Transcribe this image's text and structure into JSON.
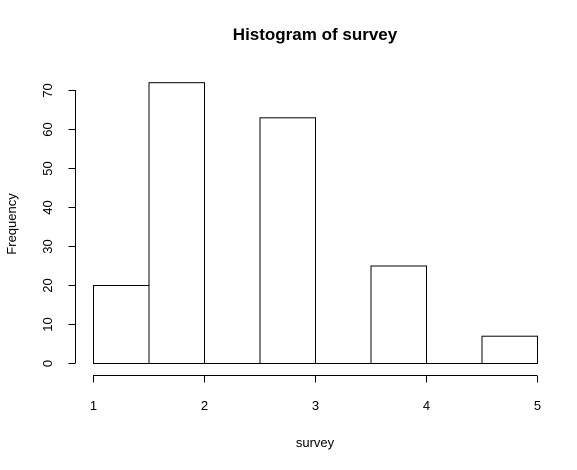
{
  "chart_data": {
    "type": "bar",
    "title": "Histogram of survey",
    "xlabel": "survey",
    "ylabel": "Frequency",
    "xlim": [
      1,
      5
    ],
    "ylim": [
      0,
      70
    ],
    "xticks": [
      "1",
      "2",
      "3",
      "4",
      "5"
    ],
    "yticks": [
      "0",
      "10",
      "20",
      "30",
      "40",
      "50",
      "60",
      "70"
    ],
    "bins": [
      {
        "start": 1.0,
        "end": 1.5,
        "value": 20
      },
      {
        "start": 1.5,
        "end": 2.0,
        "value": 72
      },
      {
        "start": 2.0,
        "end": 2.5,
        "value": 0
      },
      {
        "start": 2.5,
        "end": 3.0,
        "value": 63
      },
      {
        "start": 3.0,
        "end": 3.5,
        "value": 0
      },
      {
        "start": 3.5,
        "end": 4.0,
        "value": 25
      },
      {
        "start": 4.0,
        "end": 4.5,
        "value": 0
      },
      {
        "start": 4.5,
        "end": 5.0,
        "value": 7
      }
    ],
    "grid": false,
    "legend": "none",
    "colors": {
      "bar_fill": "#ffffff",
      "bar_stroke": "#000000",
      "axis": "#000000"
    }
  }
}
